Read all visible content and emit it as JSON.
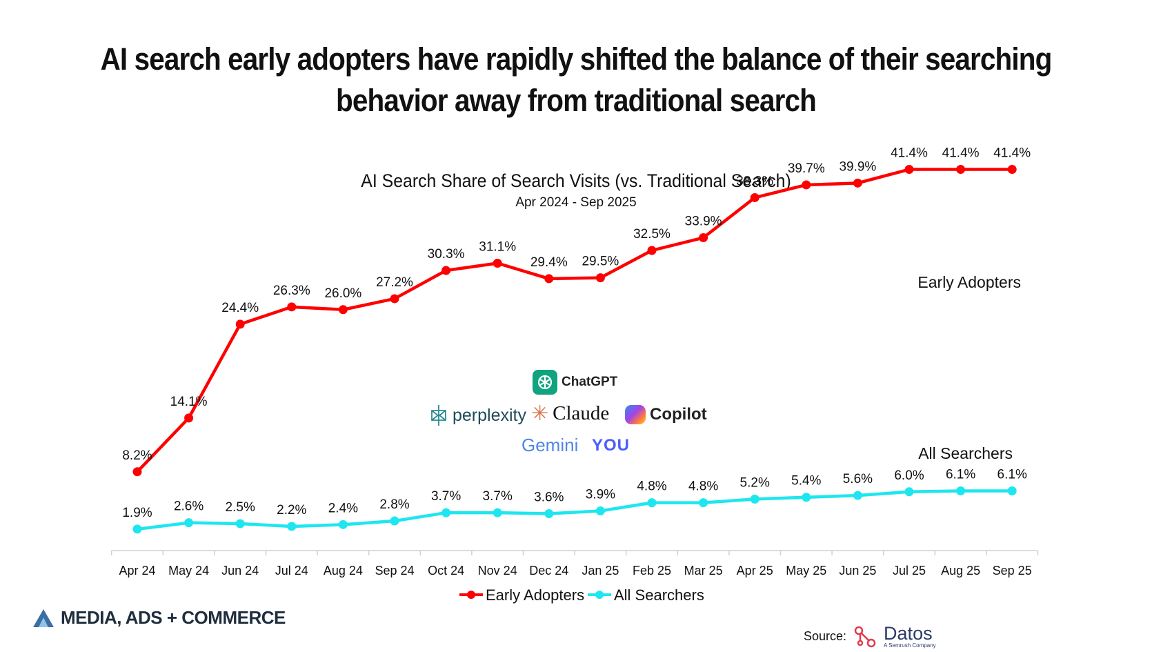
{
  "headline": "AI search early adopters have rapidly shifted the balance of their searching behavior away from traditional search",
  "chart_data": {
    "type": "line",
    "title": "AI Search Share of Search Visits (vs. Traditional Search)",
    "subtitle": "Apr 2024 - Sep 2025",
    "categories": [
      "Apr 24",
      "May 24",
      "Jun 24",
      "Jul 24",
      "Aug 24",
      "Sep 24",
      "Oct 24",
      "Nov 24",
      "Dec 24",
      "Jan 25",
      "Feb 25",
      "Mar 25",
      "Apr 25",
      "May 25",
      "Jun 25",
      "Jul 25",
      "Aug 25",
      "Sep 25"
    ],
    "series": [
      {
        "name": "Early Adopters",
        "color": "#ff0000",
        "values": [
          8.2,
          14.1,
          24.4,
          26.3,
          26.0,
          27.2,
          30.3,
          31.1,
          29.4,
          29.5,
          32.5,
          33.9,
          38.3,
          39.7,
          39.9,
          41.4,
          41.4,
          41.4
        ],
        "labels": [
          "8.2%",
          "14.1%",
          "24.4%",
          "26.3%",
          "26.0%",
          "27.2%",
          "30.3%",
          "31.1%",
          "29.4%",
          "29.5%",
          "32.5%",
          "33.9%",
          "38.3%",
          "39.7%",
          "39.9%",
          "41.4%",
          "41.4%",
          "41.4%"
        ]
      },
      {
        "name": "All Searchers",
        "color": "#1ee6f0",
        "values": [
          1.9,
          2.6,
          2.5,
          2.2,
          2.4,
          2.8,
          3.7,
          3.7,
          3.6,
          3.9,
          4.8,
          4.8,
          5.2,
          5.4,
          5.6,
          6.0,
          6.1,
          6.1
        ],
        "labels": [
          "1.9%",
          "2.6%",
          "2.5%",
          "2.2%",
          "2.4%",
          "2.8%",
          "3.7%",
          "3.7%",
          "3.6%",
          "3.9%",
          "4.8%",
          "4.8%",
          "5.2%",
          "5.4%",
          "5.6%",
          "6.0%",
          "6.1%",
          "6.1%"
        ]
      }
    ],
    "ylim": [
      0,
      45
    ],
    "grid": false,
    "legend": "bottom"
  },
  "logos": {
    "chatgpt": "ChatGPT",
    "perplexity": "perplexity",
    "claude": "Claude",
    "copilot": "Copilot",
    "gemini": "Gemini",
    "you": "YOU"
  },
  "footer": {
    "brand": "MEDIA, ADS + COMMERCE",
    "source_label": "Source:",
    "source_name": "Datos",
    "source_sub": "A Semrush Company"
  }
}
